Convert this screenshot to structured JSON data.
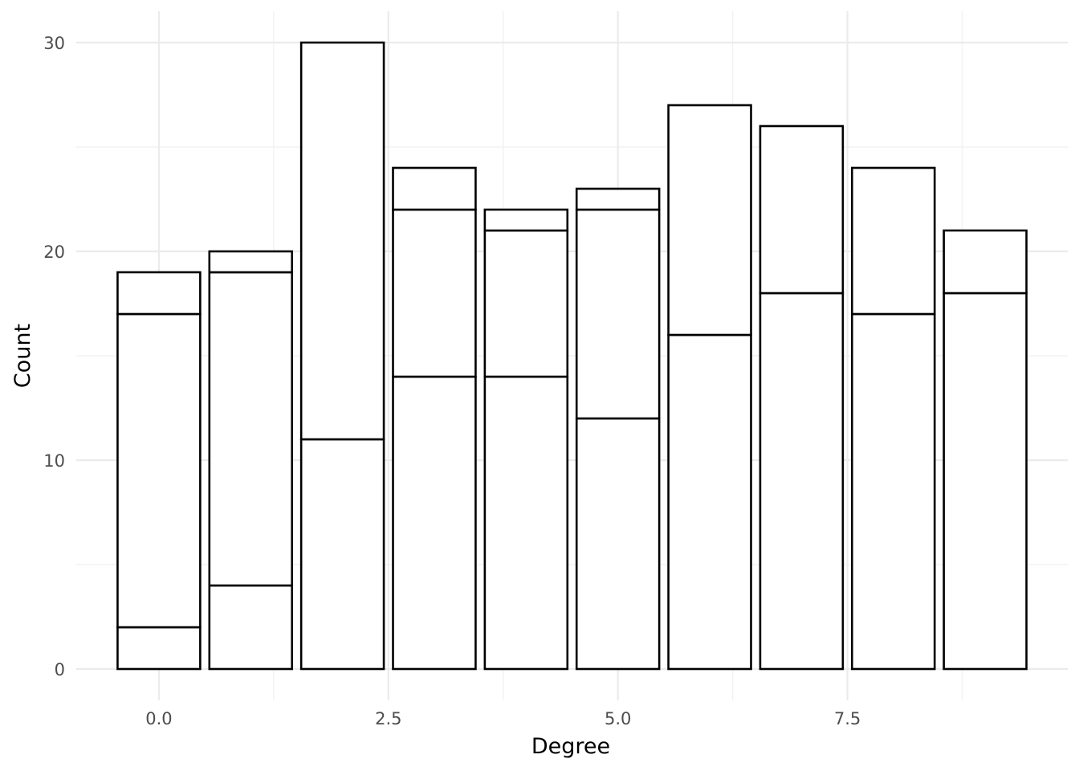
{
  "chart_data": {
    "type": "bar",
    "stacked": true,
    "xlabel": "Degree",
    "ylabel": "Count",
    "xlim": [
      -0.9,
      9.9
    ],
    "ylim": [
      -1.5,
      31.5
    ],
    "xticks": [
      0.0,
      2.5,
      5.0,
      7.5
    ],
    "xtick_labels": [
      "0.0",
      "2.5",
      "5.0",
      "7.5"
    ],
    "yticks": [
      0,
      10,
      20,
      30
    ],
    "ytick_labels": [
      "0",
      "10",
      "20",
      "30"
    ],
    "grid": true,
    "legend": "none",
    "bar_fill": "#ffffff",
    "bar_outline": "#000000",
    "bars": [
      {
        "x": 0,
        "segments": [
          2,
          15,
          2
        ]
      },
      {
        "x": 1,
        "segments": [
          4,
          15,
          1
        ]
      },
      {
        "x": 2,
        "segments": [
          11,
          19
        ]
      },
      {
        "x": 3,
        "segments": [
          14,
          8,
          2
        ]
      },
      {
        "x": 4,
        "segments": [
          14,
          7,
          1
        ]
      },
      {
        "x": 5,
        "segments": [
          12,
          10,
          1
        ]
      },
      {
        "x": 6,
        "segments": [
          16,
          11
        ]
      },
      {
        "x": 7,
        "segments": [
          18,
          8
        ]
      },
      {
        "x": 8,
        "segments": [
          17,
          7
        ]
      },
      {
        "x": 9,
        "segments": [
          18,
          3
        ]
      }
    ]
  }
}
